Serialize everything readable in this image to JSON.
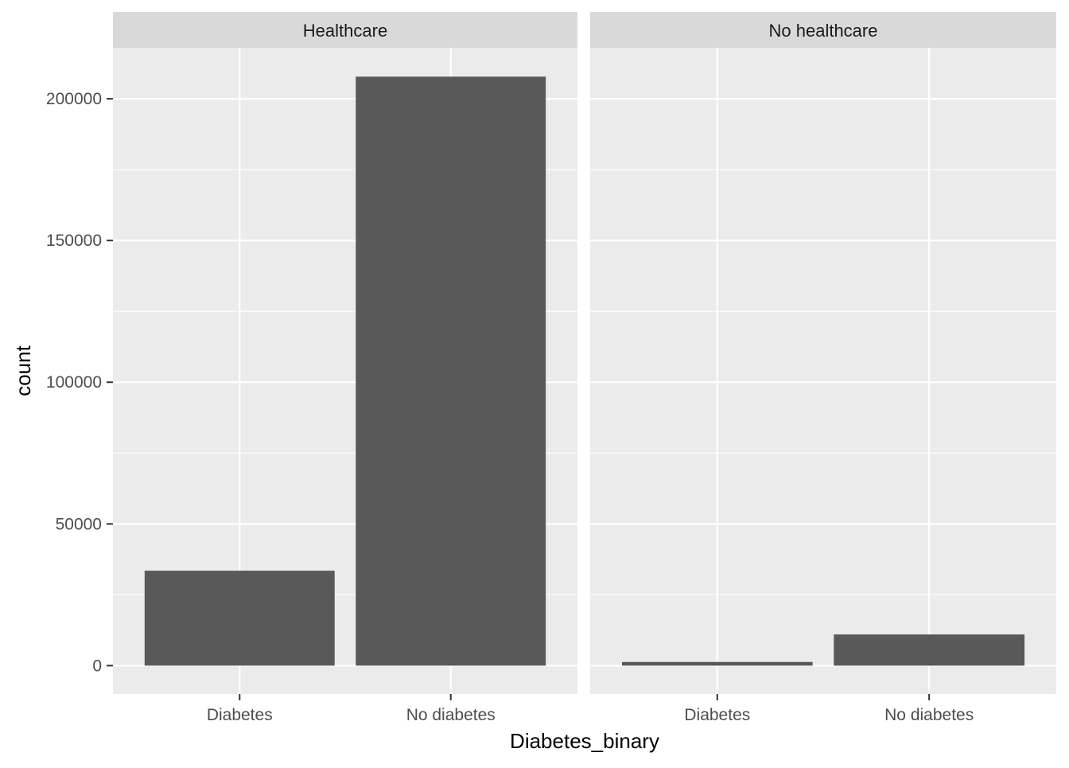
{
  "chart_data": {
    "type": "bar",
    "xlabel": "Diabetes_binary",
    "ylabel": "count",
    "categories": [
      "Diabetes",
      "No diabetes"
    ],
    "ylim": [
      -10000,
      218000
    ],
    "yticks": [
      0,
      50000,
      100000,
      150000,
      200000
    ],
    "grid": true,
    "facets": [
      {
        "label": "Healthcare",
        "values": [
          33500,
          207800
        ]
      },
      {
        "label": "No healthcare",
        "values": [
          1300,
          11000
        ]
      }
    ]
  },
  "colors": {
    "bar": "#595959",
    "panel_bg": "#EBEBEB",
    "strip_bg": "#D9D9D9",
    "grid": "#FFFFFF",
    "axis_text": "#4D4D4D",
    "title_text": "#000000",
    "strip_text": "#1A1A1A"
  }
}
